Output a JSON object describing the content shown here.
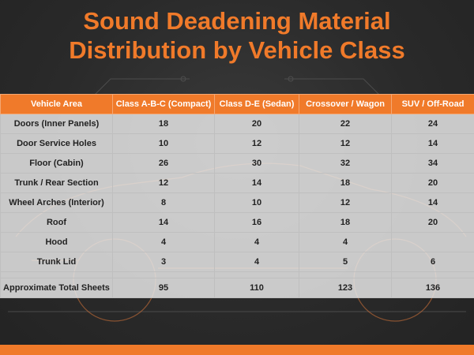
{
  "title": {
    "line1": "Sound Deadening Material",
    "line2": "Distribution by Vehicle Class"
  },
  "colors": {
    "accent": "#f07a2a",
    "background": "#2b2b2b"
  },
  "table": {
    "headers": [
      "Vehicle Area",
      "Class A-B-C (Compact)",
      "Class D-E (Sedan)",
      "Crossover / Wagon",
      "SUV / Off-Road"
    ],
    "rows": [
      [
        "Doors (Inner Panels)",
        "18",
        "20",
        "22",
        "24"
      ],
      [
        "Door Service Holes",
        "10",
        "12",
        "12",
        "14"
      ],
      [
        "Floor (Cabin)",
        "26",
        "30",
        "32",
        "34"
      ],
      [
        "Trunk / Rear Section",
        "12",
        "14",
        "18",
        "20"
      ],
      [
        "Wheel Arches (Interior)",
        "8",
        "10",
        "12",
        "14"
      ],
      [
        "Roof",
        "14",
        "16",
        "18",
        "20"
      ],
      [
        "Hood",
        "4",
        "4",
        "4",
        ""
      ],
      [
        "Trunk Lid",
        "3",
        "4",
        "5",
        "6"
      ]
    ],
    "total_row": [
      "Approximate Total Sheets",
      "95",
      "110",
      "123",
      "136"
    ]
  }
}
